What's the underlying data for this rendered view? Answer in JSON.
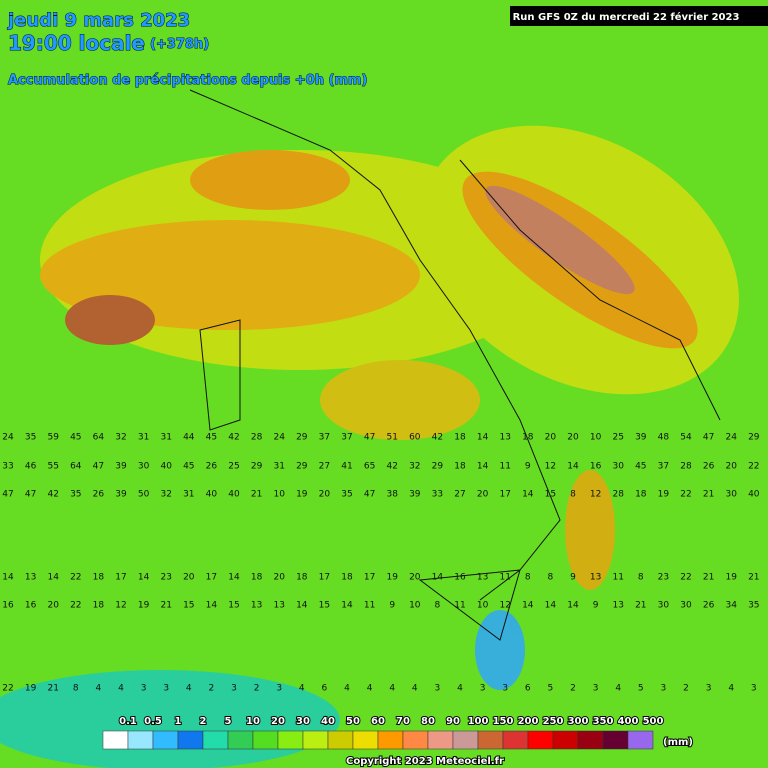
{
  "header": {
    "date": "jeudi 9 mars 2023",
    "time": "19:00 locale",
    "lead": "(+378h)",
    "subtitle": "Accumulation de précipitations depuis +0h (mm)",
    "run": "Run GFS 0Z du mercredi 22 février 2023"
  },
  "grid_rows": [
    [
      24,
      35,
      59,
      45,
      64,
      32,
      31,
      31,
      44,
      45,
      42,
      28,
      24,
      29,
      37,
      37,
      47,
      51,
      60,
      42,
      18,
      14,
      13,
      18,
      20,
      20,
      10,
      25,
      39,
      48,
      54,
      47,
      24,
      29
    ],
    [
      33,
      46,
      55,
      64,
      47,
      39,
      30,
      40,
      45,
      26,
      25,
      29,
      31,
      29,
      27,
      41,
      65,
      42,
      32,
      29,
      18,
      14,
      11,
      9,
      12,
      14,
      16,
      30,
      45,
      37,
      28,
      26,
      20,
      22
    ],
    [
      47,
      47,
      42,
      35,
      26,
      39,
      50,
      32,
      31,
      40,
      40,
      21,
      10,
      19,
      20,
      35,
      47,
      38,
      39,
      33,
      27,
      20,
      17,
      14,
      15,
      8,
      12,
      28,
      18,
      19,
      22,
      21,
      30,
      40
    ],
    [
      14,
      13,
      14,
      22,
      18,
      17,
      14,
      23,
      20,
      17,
      14,
      18,
      20,
      18,
      17,
      18,
      17,
      19,
      20,
      14,
      16,
      13,
      11,
      8,
      8,
      9,
      13,
      11,
      8,
      23,
      22,
      21,
      19,
      21
    ],
    [
      16,
      16,
      20,
      22,
      18,
      12,
      19,
      21,
      15,
      14,
      15,
      13,
      13,
      14,
      15,
      14,
      11,
      9,
      10,
      8,
      11,
      10,
      12,
      14,
      14,
      14,
      9,
      13,
      21,
      30,
      30,
      26,
      34,
      35
    ],
    [
      22,
      19,
      21,
      8,
      4,
      4,
      3,
      3,
      4,
      2,
      3,
      2,
      3,
      4,
      6,
      4,
      4,
      4,
      4,
      3,
      4,
      3,
      3,
      6,
      5,
      2,
      3,
      4,
      5,
      3,
      2,
      3,
      4,
      3
    ]
  ],
  "legend": {
    "labels": [
      "0.1",
      "0.5",
      "1",
      "2",
      "5",
      "10",
      "20",
      "30",
      "40",
      "50",
      "60",
      "70",
      "80",
      "90",
      "100",
      "150",
      "200",
      "250",
      "300",
      "350",
      "400",
      "500"
    ],
    "unit": "(mm)"
  },
  "footer": {
    "copyright": "Copyright 2023 Meteociel.fr"
  }
}
